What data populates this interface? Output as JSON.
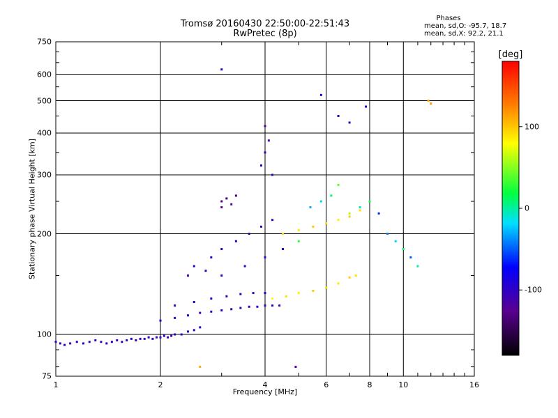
{
  "chart_data": {
    "type": "scatter",
    "title": "Tromsø 20160430 22:50:00-22:51:43",
    "subtitle": "RwPretec (8p)",
    "stats_header": "Phases",
    "stats_lines": [
      "mean, sd,O: -95.7, 18.7",
      "mean, sd,X:  92.2, 21.1"
    ],
    "xlabel": "Frequency [MHz]",
    "ylabel": "Stationary phase Virtual Height [km]",
    "x_scale": "log",
    "y_scale": "log",
    "xlim": [
      1,
      16
    ],
    "ylim": [
      75,
      750
    ],
    "x_ticks": [
      1,
      2,
      4,
      6,
      8,
      10,
      16
    ],
    "x_tick_labels": [
      "1",
      "2",
      "4",
      "6",
      "8",
      "10",
      "16"
    ],
    "y_ticks": [
      75,
      100,
      200,
      300,
      400,
      500,
      600,
      750
    ],
    "y_tick_labels": [
      "75",
      "100",
      "200",
      "300",
      "400",
      "500",
      "600",
      "750"
    ],
    "grid": true,
    "colorbar": {
      "label": "[deg]",
      "range": [
        -180,
        180
      ],
      "ticks": [
        100,
        0,
        -100
      ],
      "tick_labels": [
        "100",
        "0",
        "-100"
      ],
      "colormap": "rainbow"
    },
    "series": [
      {
        "points": [
          [
            1.0,
            95,
            -100
          ],
          [
            1.03,
            94,
            -105
          ],
          [
            1.06,
            93,
            -98
          ],
          [
            1.1,
            94,
            -110
          ],
          [
            1.15,
            95,
            -102
          ],
          [
            1.2,
            94,
            -95
          ],
          [
            1.25,
            95,
            -108
          ],
          [
            1.3,
            96,
            -100
          ],
          [
            1.35,
            95,
            -112
          ],
          [
            1.4,
            94,
            -96
          ],
          [
            1.45,
            95,
            -104
          ],
          [
            1.5,
            96,
            -99
          ],
          [
            1.55,
            95,
            -110
          ],
          [
            1.6,
            96,
            -101
          ],
          [
            1.65,
            97,
            -97
          ],
          [
            1.7,
            96,
            -106
          ],
          [
            1.75,
            97,
            -100
          ],
          [
            1.8,
            97,
            -115
          ],
          [
            1.85,
            98,
            -98
          ],
          [
            1.9,
            97,
            -103
          ],
          [
            1.95,
            98,
            -109
          ],
          [
            2.0,
            98,
            -100
          ],
          [
            2.05,
            99,
            -95
          ],
          [
            2.1,
            98,
            -104
          ],
          [
            2.15,
            99,
            -112
          ],
          [
            2.2,
            100,
            -98
          ],
          [
            2.3,
            100,
            -101
          ],
          [
            2.4,
            102,
            -100
          ],
          [
            2.5,
            103,
            -96
          ],
          [
            2.6,
            105,
            -102
          ],
          [
            2.0,
            110,
            -100
          ],
          [
            2.2,
            112,
            -105
          ],
          [
            2.4,
            114,
            -98
          ],
          [
            2.6,
            116,
            -110
          ],
          [
            2.8,
            117,
            -100
          ],
          [
            3.0,
            118,
            -95
          ],
          [
            3.2,
            119,
            -108
          ],
          [
            3.4,
            120,
            -102
          ],
          [
            3.6,
            121,
            -110
          ],
          [
            3.8,
            121,
            -100
          ],
          [
            4.0,
            122,
            -105
          ],
          [
            4.2,
            122,
            -98
          ],
          [
            4.4,
            122,
            -112
          ],
          [
            2.2,
            122,
            -100
          ],
          [
            2.5,
            125,
            -102
          ],
          [
            2.8,
            128,
            -96
          ],
          [
            3.1,
            130,
            -108
          ],
          [
            3.4,
            132,
            -100
          ],
          [
            3.7,
            133,
            -104
          ],
          [
            4.0,
            133,
            -99
          ],
          [
            4.2,
            128,
            80
          ],
          [
            4.6,
            130,
            90
          ],
          [
            5.0,
            133,
            85
          ],
          [
            5.5,
            135,
            100
          ],
          [
            6.0,
            138,
            92
          ],
          [
            6.5,
            142,
            88
          ],
          [
            7.0,
            148,
            95
          ],
          [
            7.3,
            150,
            90
          ],
          [
            4.5,
            200,
            95
          ],
          [
            5.0,
            205,
            88
          ],
          [
            5.5,
            210,
            100
          ],
          [
            6.0,
            215,
            92
          ],
          [
            6.5,
            220,
            85
          ],
          [
            7.0,
            225,
            98
          ],
          [
            7.5,
            235,
            90
          ],
          [
            3.0,
            250,
            -130
          ],
          [
            3.1,
            255,
            -135
          ],
          [
            3.2,
            245,
            -125
          ],
          [
            3.3,
            260,
            -140
          ],
          [
            3.0,
            240,
            -128
          ],
          [
            4.0,
            350,
            -110
          ],
          [
            4.1,
            380,
            -115
          ],
          [
            4.0,
            420,
            -120
          ],
          [
            3.9,
            320,
            -100
          ],
          [
            4.2,
            300,
            -105
          ],
          [
            2.5,
            160,
            -100
          ],
          [
            2.8,
            170,
            -95
          ],
          [
            3.0,
            180,
            -105
          ],
          [
            3.3,
            190,
            -98
          ],
          [
            3.6,
            200,
            -102
          ],
          [
            3.9,
            210,
            -108
          ],
          [
            4.2,
            220,
            -100
          ],
          [
            2.4,
            150,
            -110
          ],
          [
            2.7,
            155,
            -100
          ],
          [
            3.0,
            150,
            -96
          ],
          [
            3.5,
            160,
            -104
          ],
          [
            4.0,
            170,
            -100
          ],
          [
            4.5,
            180,
            -98
          ],
          [
            5.0,
            190,
            30
          ],
          [
            5.4,
            240,
            -30
          ],
          [
            5.8,
            250,
            -20
          ],
          [
            6.2,
            260,
            10
          ],
          [
            6.5,
            280,
            40
          ],
          [
            7.0,
            230,
            60
          ],
          [
            7.5,
            240,
            -10
          ],
          [
            8.0,
            250,
            20
          ],
          [
            8.5,
            230,
            -60
          ],
          [
            9.0,
            200,
            -40
          ],
          [
            9.5,
            190,
            -20
          ],
          [
            10.0,
            180,
            10
          ],
          [
            10.5,
            170,
            -50
          ],
          [
            11.0,
            160,
            0
          ],
          [
            5.8,
            520,
            -100
          ],
          [
            6.5,
            450,
            -110
          ],
          [
            7.0,
            430,
            -105
          ],
          [
            7.8,
            480,
            -100
          ],
          [
            11.8,
            500,
            110
          ],
          [
            12.0,
            490,
            120
          ],
          [
            3.0,
            620,
            -100
          ],
          [
            2.6,
            80,
            110
          ],
          [
            4.9,
            80,
            -120
          ]
        ]
      }
    ]
  }
}
